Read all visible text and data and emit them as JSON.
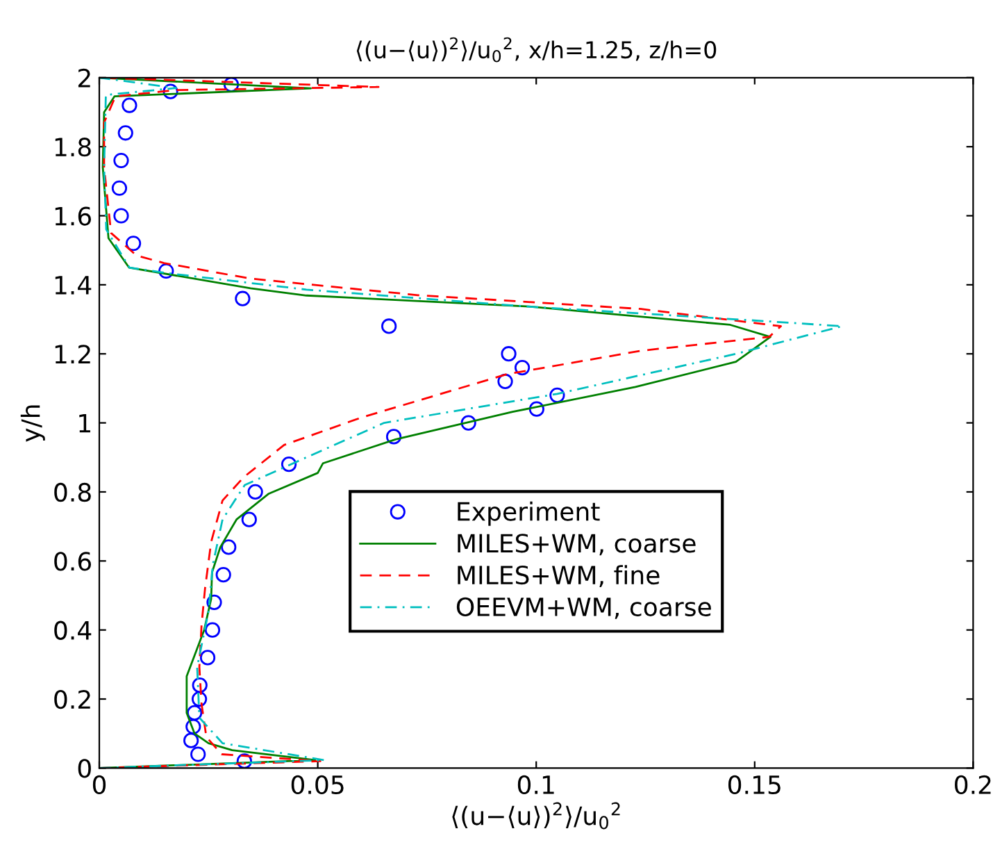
{
  "chart_data": {
    "type": "line",
    "title": "⟨(u−⟨u⟩)$^{2}$⟩/u$_{0}$$^{2}$, x/h=1.25, z/h=0",
    "xlabel": "⟨(u−⟨u⟩)$^{2}$⟩/u$_{0}$$^{2}$",
    "ylabel": "y/h",
    "xlim": [
      0,
      0.2
    ],
    "ylim": [
      0,
      2
    ],
    "xticks": [
      0,
      0.05,
      0.1,
      0.15,
      0.2
    ],
    "yticks": [
      0,
      0.2,
      0.4,
      0.6,
      0.8,
      1,
      1.2,
      1.4,
      1.6,
      1.8,
      2
    ],
    "grid": false,
    "legend": "lower center",
    "series": [
      {
        "name": "Experiment",
        "type": "scatter",
        "marker": "circle",
        "color": "#0000ff",
        "x": [
          0.0332,
          0.0226,
          0.021,
          0.0215,
          0.0218,
          0.0229,
          0.023,
          0.0248,
          0.0259,
          0.0263,
          0.0284,
          0.0296,
          0.0343,
          0.0357,
          0.0434,
          0.0674,
          0.0845,
          0.1001,
          0.1048,
          0.0929,
          0.0968,
          0.0937,
          0.0663,
          0.0328,
          0.0153,
          0.0078,
          0.005,
          0.0046,
          0.005,
          0.006,
          0.0069,
          0.0163,
          0.0302
        ],
        "values": [
          0.02,
          0.04,
          0.08,
          0.12,
          0.16,
          0.2,
          0.24,
          0.32,
          0.4,
          0.48,
          0.56,
          0.64,
          0.72,
          0.8,
          0.88,
          0.96,
          1.0,
          1.04,
          1.08,
          1.12,
          1.16,
          1.2,
          1.28,
          1.36,
          1.44,
          1.52,
          1.6,
          1.68,
          1.76,
          1.84,
          1.92,
          1.96,
          1.98
        ]
      },
      {
        "name": "MILES+WM, coarse",
        "line_style": "solid",
        "color": "#008000",
        "x": [
          0,
          0.0494,
          0.0304,
          0.025,
          0.0218,
          0.02,
          0.02,
          0.024,
          0.0256,
          0.0258,
          0.0277,
          0.0314,
          0.0388,
          0.05,
          0.0512,
          0.0678,
          0.0946,
          0.1227,
          0.1457,
          0.1536,
          0.1444,
          0.0984,
          0.0474,
          0.0346,
          0.0068,
          0.0021,
          0.0008,
          0.0011,
          0.0035,
          0.0484,
          0
        ],
        "values": [
          0,
          0.023,
          0.052,
          0.072,
          0.1,
          0.16,
          0.266,
          0.4,
          0.49,
          0.567,
          0.64,
          0.72,
          0.795,
          0.855,
          0.883,
          0.952,
          1.032,
          1.104,
          1.177,
          1.249,
          1.284,
          1.337,
          1.369,
          1.39,
          1.45,
          1.535,
          1.74,
          1.9,
          1.946,
          1.969,
          2
        ]
      },
      {
        "name": "MILES+WM, fine",
        "line_style": "dashed",
        "color": "#ff0000",
        "x": [
          0,
          0.0506,
          0.028,
          0.0245,
          0.0234,
          0.0229,
          0.0234,
          0.0242,
          0.0256,
          0.0282,
          0.033,
          0.0423,
          0.0601,
          0.0933,
          0.124,
          0.1533,
          0.156,
          0.124,
          0.0729,
          0.0346,
          0.0148,
          0.0085,
          0.0027,
          0.0011,
          0.0011,
          0.0037,
          0.0176,
          0.0639,
          0
        ],
        "values": [
          0,
          0.02,
          0.04,
          0.09,
          0.186,
          0.293,
          0.414,
          0.52,
          0.655,
          0.775,
          0.842,
          0.936,
          1.016,
          1.141,
          1.209,
          1.249,
          1.28,
          1.33,
          1.37,
          1.418,
          1.463,
          1.485,
          1.55,
          1.74,
          1.87,
          1.946,
          1.964,
          1.973,
          2
        ]
      },
      {
        "name": "OEEVM+WM, coarse",
        "line_style": "dashdot",
        "color": "#00bfbf",
        "x": [
          0,
          0.0515,
          0.0282,
          0.0229,
          0.0224,
          0.025,
          0.026,
          0.0282,
          0.0333,
          0.0474,
          0.0652,
          0.1048,
          0.1457,
          0.17,
          0.1533,
          0.098,
          0.0474,
          0.0154,
          0.0069,
          0.0016,
          0.0011,
          0.0015,
          0.0176,
          0
        ],
        "values": [
          0,
          0.023,
          0.072,
          0.146,
          0.293,
          0.454,
          0.59,
          0.72,
          0.82,
          0.9,
          1.0,
          1.084,
          1.2,
          1.28,
          1.294,
          1.337,
          1.386,
          1.434,
          1.45,
          1.56,
          1.74,
          1.95,
          1.97,
          2
        ]
      }
    ]
  }
}
